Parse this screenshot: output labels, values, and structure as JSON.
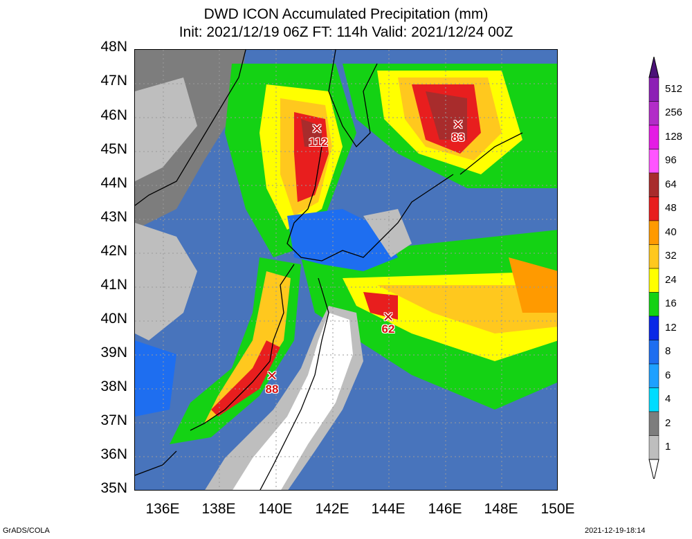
{
  "title": {
    "line1": "DWD ICON Accumulated Precipitation (mm)",
    "line2": "Init: 2021/12/19 06Z  FT: 114h  Valid: 2021/12/24 00Z"
  },
  "map": {
    "lat_labels": [
      "48N",
      "47N",
      "46N",
      "45N",
      "44N",
      "43N",
      "42N",
      "41N",
      "40N",
      "39N",
      "38N",
      "37N",
      "36N",
      "35N"
    ],
    "lon_labels": [
      "136E",
      "138E",
      "140E",
      "142E",
      "144E",
      "146E",
      "148E",
      "150E"
    ],
    "extent": {
      "lon_min": 135,
      "lon_max": 150,
      "lat_min": 35,
      "lat_max": 48
    },
    "maxima": [
      {
        "value": "112",
        "lon": 141.5,
        "lat": 45.6
      },
      {
        "value": "83",
        "lon": 146.5,
        "lat": 45.7
      },
      {
        "value": "62",
        "lon": 144.0,
        "lat": 40.1
      },
      {
        "value": "88",
        "lon": 139.8,
        "lat": 38.4
      }
    ]
  },
  "colorbar": {
    "levels": [
      "512",
      "256",
      "128",
      "96",
      "64",
      "48",
      "40",
      "32",
      "24",
      "16",
      "12",
      "8",
      "6",
      "4",
      "2",
      "1"
    ],
    "colors": [
      "#8c1fb5",
      "#b22cc8",
      "#e41ce4",
      "#ff55ff",
      "#a82c2c",
      "#e81e1e",
      "#ff9a00",
      "#ffc81e",
      "#ffff00",
      "#14d214",
      "#0a28e6",
      "#1e6ef0",
      "#1ea0ff",
      "#00dcff",
      "#7d7d7d",
      "#bebebe"
    ]
  },
  "footer": {
    "left": "GrADS/COLA",
    "right": "2021-12-19-18:14"
  }
}
